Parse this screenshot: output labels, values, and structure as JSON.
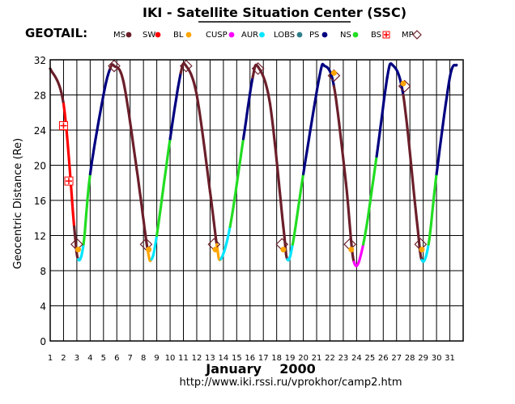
{
  "chart_data": {
    "type": "line",
    "title": "IKI - Satellite Situation Center (SSC)",
    "satellite_label": "GEOTAIL:",
    "xlabel": "January    2000",
    "ylabel": "Geocentric  Distance  (Re)",
    "url": "http://www.iki.rssi.ru/vprokhor/camp2.htm",
    "xlim": [
      1,
      32
    ],
    "ylim": [
      0,
      32
    ],
    "x_ticks": [
      "1",
      "2",
      "3",
      "4",
      "5",
      "6",
      "7",
      "8",
      "9",
      "10",
      "11",
      "12",
      "13",
      "14",
      "15",
      "16",
      "17",
      "18",
      "19",
      "20",
      "21",
      "22",
      "23",
      "24",
      "25",
      "26",
      "27",
      "28",
      "29",
      "30",
      "31"
    ],
    "y_ticks": [
      0,
      4,
      8,
      12,
      16,
      20,
      24,
      28,
      32
    ],
    "grid": true,
    "legend": [
      {
        "label": "MS",
        "color": "#6b1f2a",
        "marker": "dot"
      },
      {
        "label": "SW",
        "color": "#ff0000",
        "marker": "dot"
      },
      {
        "label": "BL",
        "color": "#ffa500",
        "marker": "dot"
      },
      {
        "label": "CUSP",
        "color": "#ff00ff",
        "marker": "dot"
      },
      {
        "label": "AUR",
        "color": "#00e5ff",
        "marker": "dot"
      },
      {
        "label": "LOBS",
        "color": "#2f7f8a",
        "marker": "dot"
      },
      {
        "label": "PS",
        "color": "#000080",
        "marker": "dot"
      },
      {
        "label": "NS",
        "color": "#22dd22",
        "marker": "dot"
      },
      {
        "label": "BS",
        "color": "#ff0000",
        "marker": "cross"
      },
      {
        "label": "MP",
        "color": "#6b1f2a",
        "marker": "diamond"
      }
    ],
    "series": [
      {
        "x": [
          1.0,
          2.0,
          2.8,
          3.1,
          3.5,
          4.0,
          5.0,
          5.5,
          5.8,
          6.5,
          7.5,
          8.3,
          8.6,
          9.0,
          10.0,
          10.8,
          11.2,
          12.0,
          13.0,
          13.5,
          13.8,
          14.5,
          15.5,
          16.2,
          16.6,
          17.5,
          18.5,
          18.8,
          19.2,
          20.0,
          21.2,
          21.6,
          22.3,
          23.2,
          23.8,
          24.5,
          25.5,
          26.3,
          26.7,
          27.5,
          28.5,
          28.9,
          29.4,
          30.0,
          31.0,
          31.5
        ],
        "y": [
          31.0,
          27.0,
          13.0,
          9.3,
          11.0,
          19.0,
          28.0,
          31.0,
          31.3,
          29.5,
          19.5,
          10.5,
          9.3,
          12.0,
          23.0,
          30.5,
          31.3,
          28.0,
          17.0,
          11.0,
          9.3,
          13.0,
          23.0,
          30.0,
          31.2,
          27.0,
          13.0,
          9.3,
          11.0,
          19.0,
          30.0,
          31.3,
          29.0,
          18.0,
          9.0,
          11.0,
          21.0,
          30.0,
          31.4,
          28.0,
          14.0,
          9.2,
          11.0,
          19.0,
          30.0,
          31.4
        ],
        "regions": [
          "MS",
          "SW",
          "MS",
          "AUR",
          "NS",
          "PS",
          "PS",
          "MS",
          "MS",
          "MS",
          "MS",
          "BL",
          "AUR",
          "NS",
          "PS",
          "MS",
          "MS",
          "MS",
          "MS",
          "BL",
          "AUR",
          "NS",
          "PS",
          "MS",
          "MS",
          "MS",
          "MS",
          "AUR",
          "NS",
          "PS",
          "PS",
          "PS",
          "MS",
          "MS",
          "CUSP",
          "NS",
          "PS",
          "PS",
          "PS",
          "MS",
          "MS",
          "AUR",
          "NS",
          "PS",
          "PS",
          "PS"
        ]
      }
    ],
    "markers": [
      {
        "type": "MP",
        "x": 3.0,
        "y": 11.0
      },
      {
        "type": "MP",
        "x": 5.8,
        "y": 31.3
      },
      {
        "type": "MP",
        "x": 8.2,
        "y": 11.0
      },
      {
        "type": "MP",
        "x": 11.2,
        "y": 31.3
      },
      {
        "type": "MP",
        "x": 13.3,
        "y": 11.0
      },
      {
        "type": "MP",
        "x": 16.6,
        "y": 31.0
      },
      {
        "type": "MP",
        "x": 18.4,
        "y": 11.0
      },
      {
        "type": "MP",
        "x": 22.3,
        "y": 30.2
      },
      {
        "type": "MP",
        "x": 23.5,
        "y": 11.0
      },
      {
        "type": "MP",
        "x": 27.6,
        "y": 29.0
      },
      {
        "type": "MP",
        "x": 28.8,
        "y": 11.0
      },
      {
        "type": "BS",
        "x": 2.0,
        "y": 24.5
      },
      {
        "type": "BS",
        "x": 2.4,
        "y": 18.2
      },
      {
        "type": "BL",
        "x": 3.1,
        "y": 10.4
      },
      {
        "type": "BL",
        "x": 8.4,
        "y": 10.4
      },
      {
        "type": "BL",
        "x": 13.4,
        "y": 10.4
      },
      {
        "type": "BL",
        "x": 18.5,
        "y": 10.4
      },
      {
        "type": "BL",
        "x": 22.3,
        "y": 30.5
      },
      {
        "type": "BL",
        "x": 23.6,
        "y": 10.4
      },
      {
        "type": "BL",
        "x": 27.5,
        "y": 29.3
      },
      {
        "type": "BL",
        "x": 28.9,
        "y": 10.4
      }
    ]
  }
}
